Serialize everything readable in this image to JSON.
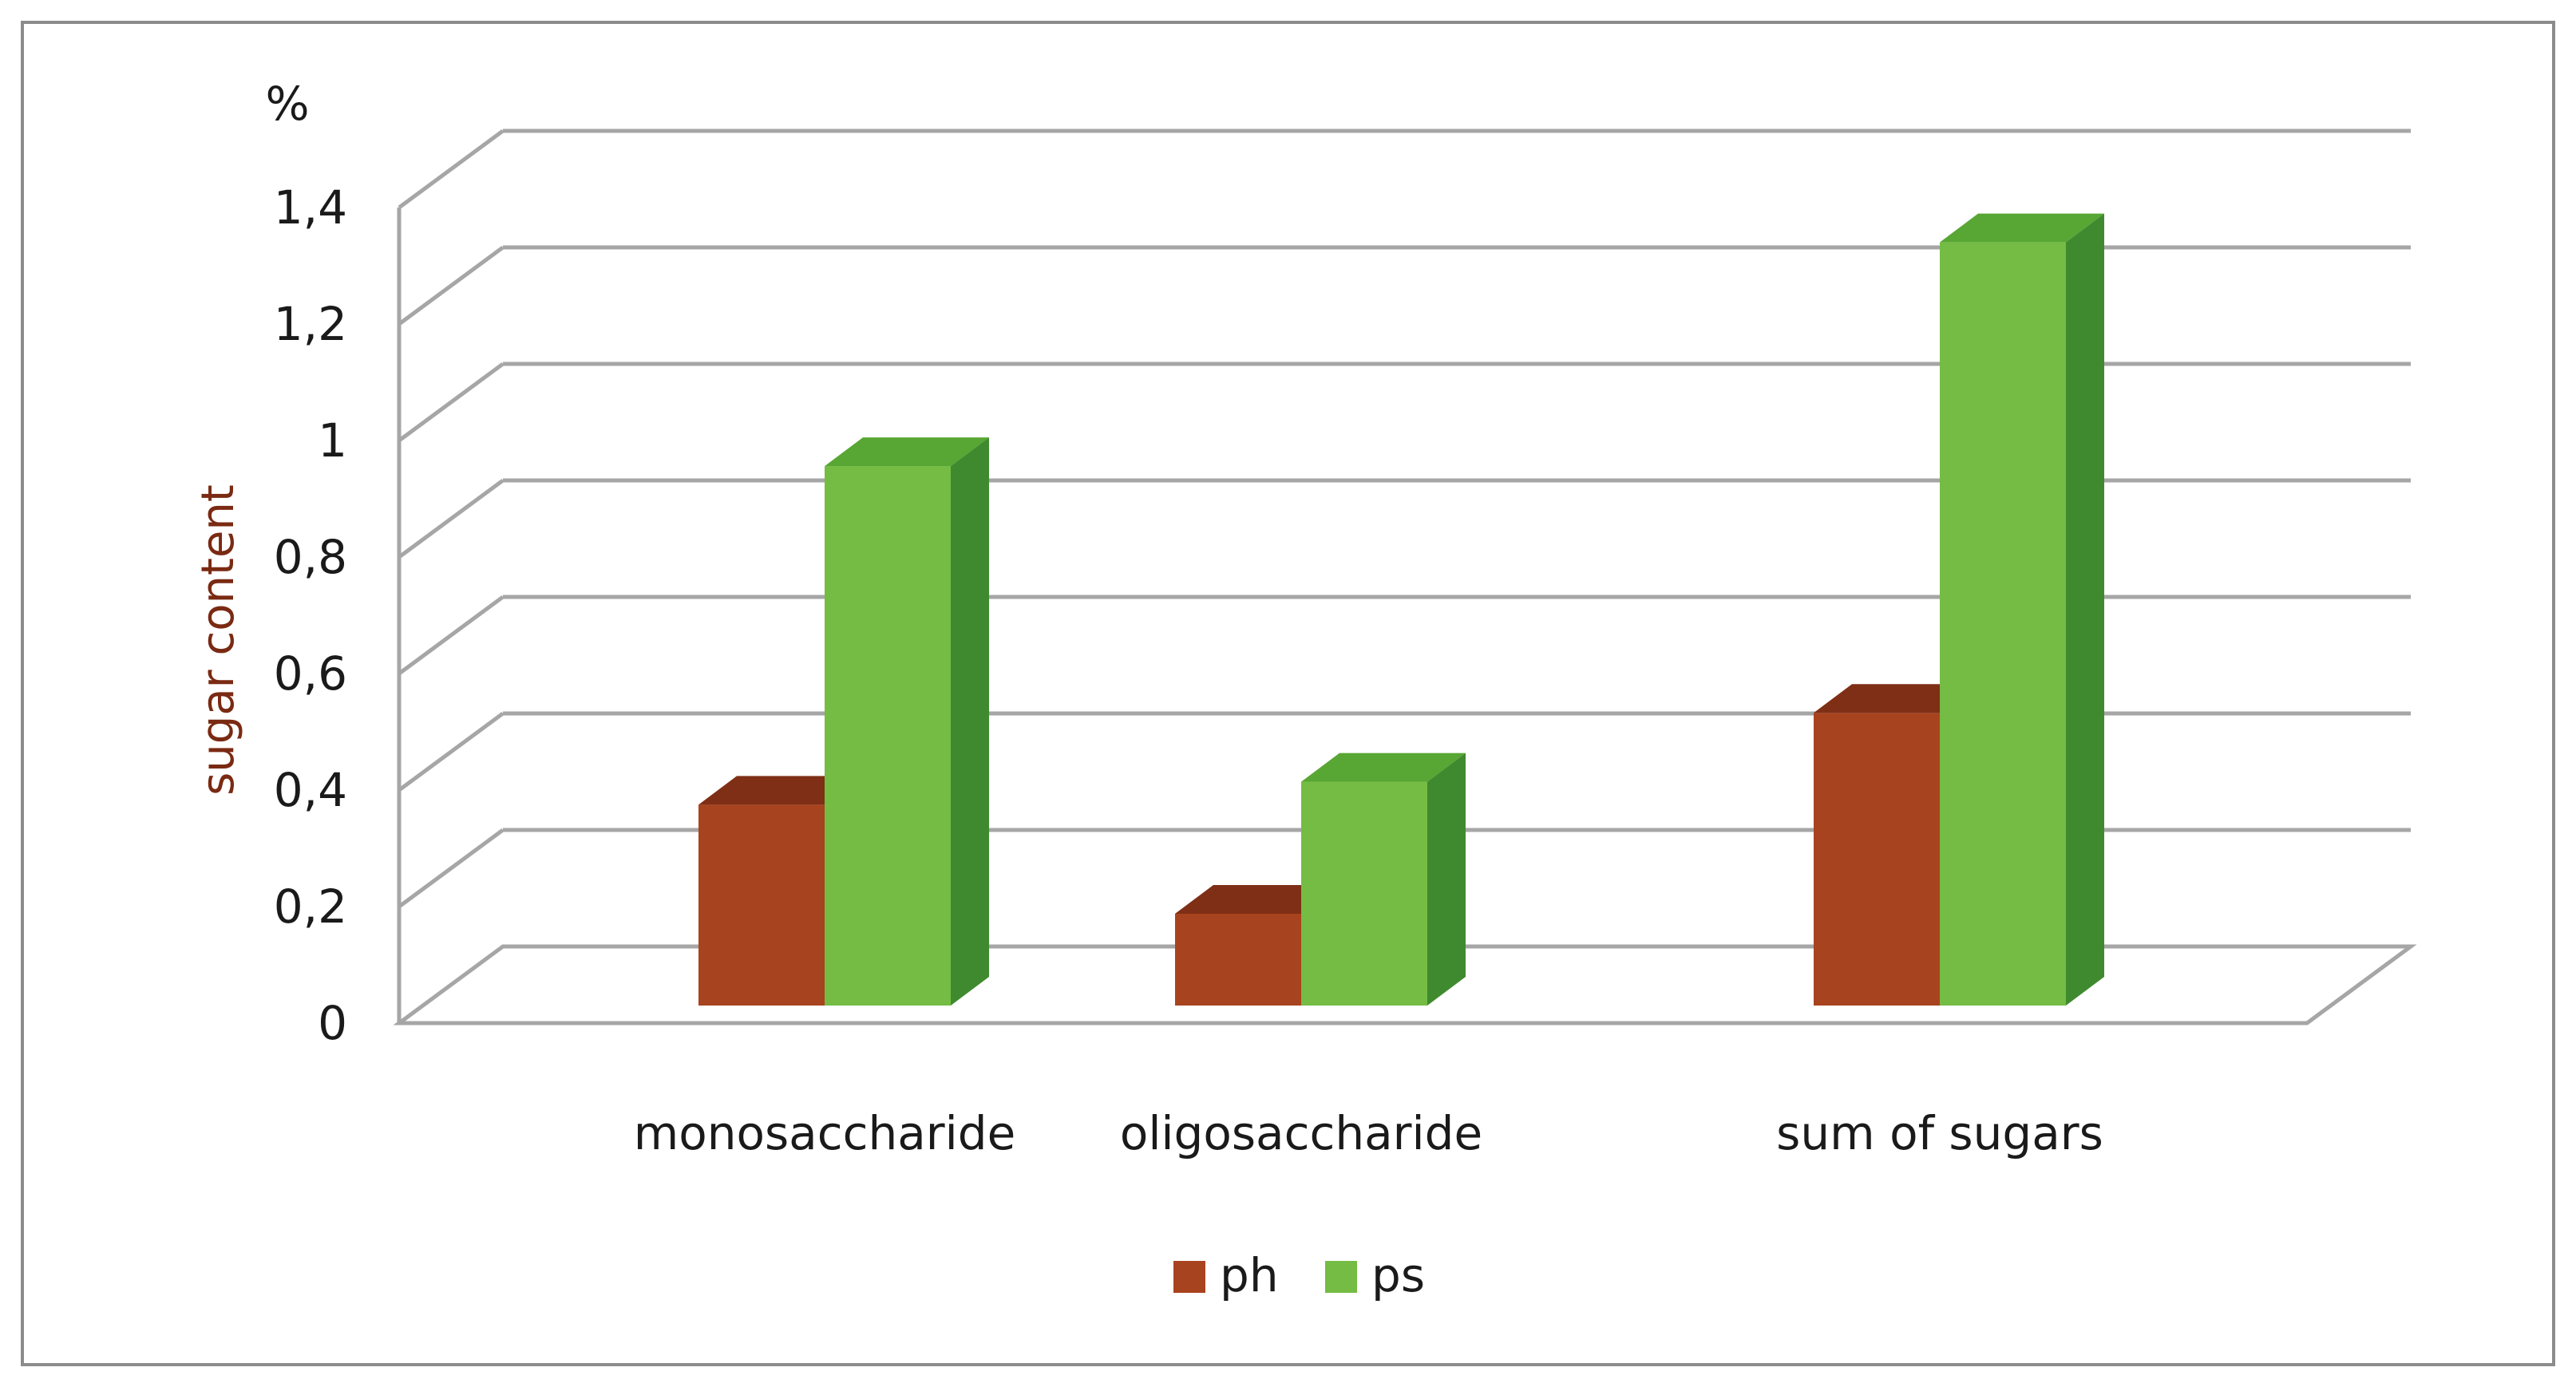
{
  "chart_data": {
    "type": "bar",
    "title": "",
    "unit_label": "%",
    "ylabel": "sugar content",
    "xlabel": "",
    "ylim": [
      0,
      1.4
    ],
    "yticks": [
      "0",
      "0,2",
      "0,4",
      "0,6",
      "0,8",
      "1",
      "1,2",
      "1,4"
    ],
    "ytick_values": [
      0,
      0.2,
      0.4,
      0.6,
      0.8,
      1.0,
      1.2,
      1.4
    ],
    "grid": true,
    "style": "3d-clustered",
    "categories": [
      "monosaccharide",
      "oligosaccharide",
      "sum of sugars"
    ],
    "series": [
      {
        "name": "ph",
        "values": [
          0.35,
          0.16,
          0.51
        ],
        "color": "#a8431f",
        "top_color": "#7e2f15",
        "side_color": "#7e2f15"
      },
      {
        "name": "ps",
        "values": [
          0.94,
          0.39,
          1.33
        ],
        "color": "#74bc44",
        "top_color": "#58a633",
        "side_color": "#3f8a2e"
      }
    ],
    "legend_position": "bottom"
  },
  "colors": {
    "gridline": "#a6a6a6",
    "frame": "#8c8c8c"
  }
}
